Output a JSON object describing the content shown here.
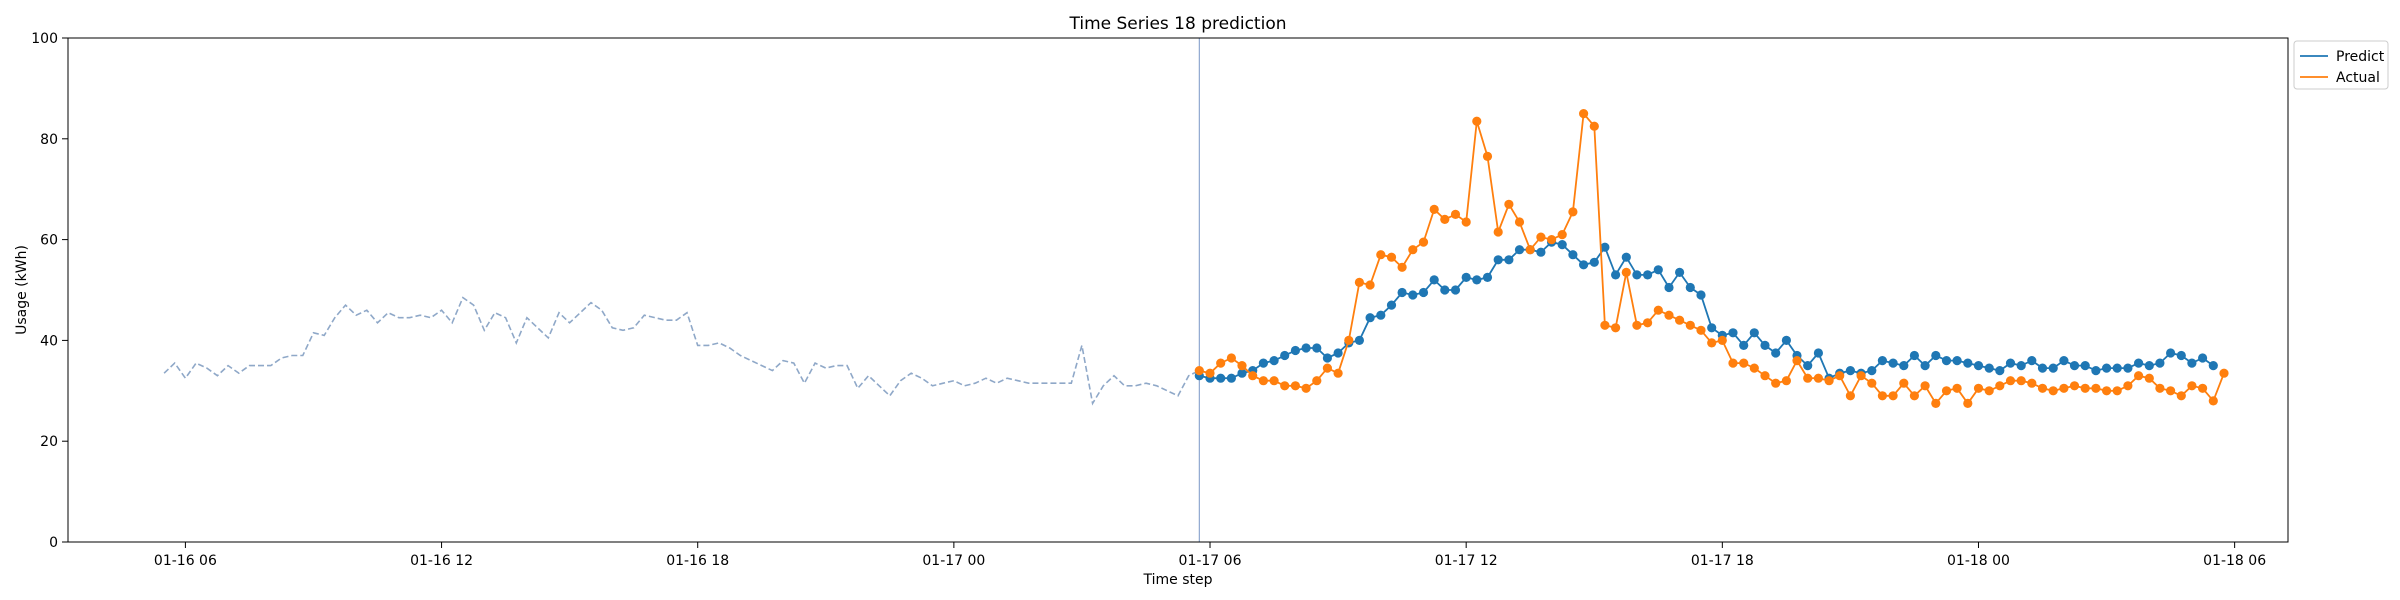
{
  "chart_data": {
    "type": "line",
    "title": "Time Series 18 prediction",
    "xlabel": "Time step",
    "ylabel": "Usage (kWh)",
    "ylim": [
      0,
      100
    ],
    "yticks": [
      0,
      20,
      40,
      60,
      80,
      100
    ],
    "xlim": [
      "2024-01-16T03:15",
      "2024-01-18T07:15"
    ],
    "xticks": [
      {
        "t": "2024-01-16T06:00",
        "label": "01-16 06"
      },
      {
        "t": "2024-01-16T12:00",
        "label": "01-16 12"
      },
      {
        "t": "2024-01-16T18:00",
        "label": "01-16 18"
      },
      {
        "t": "2024-01-17T00:00",
        "label": "01-17 00"
      },
      {
        "t": "2024-01-17T06:00",
        "label": "01-17 06"
      },
      {
        "t": "2024-01-17T12:00",
        "label": "01-17 12"
      },
      {
        "t": "2024-01-17T18:00",
        "label": "01-17 18"
      },
      {
        "t": "2024-01-18T00:00",
        "label": "01-18 00"
      },
      {
        "t": "2024-01-18T06:00",
        "label": "01-18 06"
      }
    ],
    "grid": false,
    "legend_position": "outside-top-right",
    "forecast_start": "2024-01-17T05:45",
    "colors": {
      "history": "#8fa8c8",
      "predict": "#1f77b4",
      "actual": "#ff7f0e",
      "divider": "#8fa8d0"
    },
    "history": {
      "start": "2024-01-16T05:30",
      "step_minutes": 15,
      "values": [
        33.5,
        35.5,
        32.5,
        35.5,
        34.5,
        33,
        35,
        33.5,
        35,
        35,
        35,
        36.5,
        37,
        37,
        41.5,
        41,
        44.5,
        47,
        45,
        46,
        43.5,
        45.5,
        44.5,
        44.5,
        45,
        44.5,
        46,
        43.5,
        48.5,
        47,
        42,
        45.5,
        44.5,
        39.5,
        44.5,
        42.5,
        40.5,
        45.5,
        43.5,
        45.5,
        47.5,
        46,
        42.5,
        42,
        42.5,
        45,
        44.5,
        44,
        44,
        45.5,
        39,
        39,
        39.5,
        38.5,
        37,
        36,
        35,
        34,
        36,
        35.5,
        31.5,
        35.5,
        34.5,
        35,
        35,
        30.5,
        33,
        31,
        29,
        32,
        33.5,
        32.5,
        31,
        31.5,
        32,
        31,
        31.5,
        32.5,
        31.5,
        32.5,
        32,
        31.5,
        31.5,
        31.5,
        31.5,
        31.5,
        39,
        27.5,
        31,
        33,
        31,
        31,
        31.5,
        31,
        30,
        29,
        33,
        34
      ]
    },
    "series": [
      {
        "name": "Predict",
        "start": "2024-01-17T05:45",
        "step_minutes": 15,
        "values": [
          33,
          32.5,
          32.5,
          32.5,
          33.5,
          34,
          35.5,
          36,
          37,
          38,
          38.5,
          38.5,
          36.5,
          37.5,
          39.5,
          40,
          44.5,
          45,
          47,
          49.5,
          49,
          49.5,
          52,
          50,
          50,
          52.5,
          52,
          52.5,
          56,
          56,
          58,
          58,
          57.5,
          59.5,
          59,
          57,
          55,
          55.5,
          58.5,
          53,
          56.5,
          53,
          53,
          54,
          50.5,
          53.5,
          50.5,
          49,
          42.5,
          41,
          41.5,
          39,
          41.5,
          39,
          37.5,
          40,
          37,
          35,
          37.5,
          32.5,
          33.5,
          34,
          33.5,
          34,
          36,
          35.5,
          35,
          37,
          35,
          37,
          36,
          36,
          35.5,
          35,
          34.5,
          34,
          35.5,
          35,
          36,
          34.5,
          34.5,
          36,
          35,
          35,
          34,
          34.5,
          34.5,
          34.5,
          35.5,
          35,
          35.5,
          37.5,
          37,
          35.5,
          36.5,
          35
        ]
      },
      {
        "name": "Actual",
        "start": "2024-01-17T05:45",
        "step_minutes": 15,
        "values": [
          34,
          33.5,
          35.5,
          36.5,
          35,
          33,
          32,
          32,
          31,
          31,
          30.5,
          32,
          34.5,
          33.5,
          40,
          51.5,
          51,
          57,
          56.5,
          54.5,
          58,
          59.5,
          66,
          64,
          65,
          63.5,
          83.5,
          76.5,
          61.5,
          67,
          63.5,
          58,
          60.5,
          60,
          61,
          65.5,
          85,
          82.5,
          43,
          42.5,
          53.5,
          43,
          43.5,
          46,
          45,
          44,
          43,
          42,
          39.5,
          40,
          35.5,
          35.5,
          34.5,
          33,
          31.5,
          32,
          36,
          32.5,
          32.5,
          32,
          33,
          29,
          33,
          31.5,
          29,
          29,
          31.5,
          29,
          31,
          27.5,
          30,
          30.5,
          27.5,
          30.5,
          30,
          31,
          32,
          32,
          31.5,
          30.5,
          30,
          30.5,
          31,
          30.5,
          30.5,
          30,
          30,
          31,
          33,
          32.5,
          30.5,
          30,
          29,
          31,
          30.5,
          28,
          33.5
        ]
      }
    ]
  }
}
